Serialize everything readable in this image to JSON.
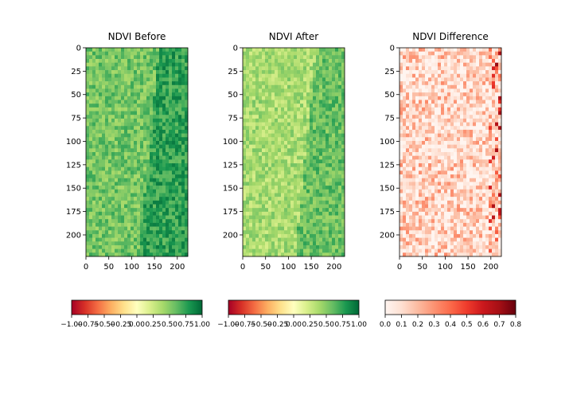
{
  "chart_data": [
    {
      "type": "heatmap",
      "title": "NDVI Before",
      "colormap": "RdYlGn",
      "xlim": [
        0,
        223
      ],
      "ylim": [
        223,
        0
      ],
      "x_ticks": [
        "0",
        "50",
        "100",
        "150",
        "200"
      ],
      "y_ticks": [
        "0",
        "25",
        "50",
        "75",
        "100",
        "125",
        "150",
        "175",
        "200"
      ],
      "value_range": [
        -1.0,
        1.0
      ],
      "typical_value": 0.55,
      "colorbar": {
        "orientation": "horizontal",
        "ticks": [
          "−1.00",
          "−0.75",
          "−0.50",
          "−0.25",
          "0.00",
          "0.25",
          "0.50",
          "0.75",
          "1.00"
        ]
      }
    },
    {
      "type": "heatmap",
      "title": "NDVI After",
      "colormap": "RdYlGn",
      "xlim": [
        0,
        223
      ],
      "ylim": [
        223,
        0
      ],
      "x_ticks": [
        "0",
        "50",
        "100",
        "150",
        "200"
      ],
      "y_ticks": [
        "0",
        "25",
        "50",
        "75",
        "100",
        "125",
        "150",
        "175",
        "200"
      ],
      "value_range": [
        -1.0,
        1.0
      ],
      "typical_value": 0.38,
      "colorbar": {
        "orientation": "horizontal",
        "ticks": [
          "−1.00",
          "−0.75",
          "−0.50",
          "−0.25",
          "0.00",
          "0.25",
          "0.50",
          "0.75",
          "1.00"
        ]
      }
    },
    {
      "type": "heatmap",
      "title": "NDVI Difference",
      "colormap": "Reds",
      "xlim": [
        0,
        223
      ],
      "ylim": [
        223,
        0
      ],
      "x_ticks": [
        "0",
        "50",
        "100",
        "150",
        "200"
      ],
      "y_ticks": [
        "0",
        "25",
        "50",
        "75",
        "100",
        "125",
        "150",
        "175",
        "200"
      ],
      "value_range": [
        0.0,
        0.8
      ],
      "typical_value": 0.15,
      "colorbar": {
        "orientation": "horizontal",
        "ticks": [
          "0.0",
          "0.1",
          "0.2",
          "0.3",
          "0.4",
          "0.5",
          "0.6",
          "0.7",
          "0.8"
        ]
      }
    }
  ],
  "colors": {
    "rdylgn": [
      "#a50026",
      "#d73027",
      "#f46d43",
      "#fdae61",
      "#fee08b",
      "#ffffbf",
      "#d9ef8b",
      "#a6d96a",
      "#66bd63",
      "#1a9850",
      "#006837"
    ],
    "reds": [
      "#fff5f0",
      "#fee0d2",
      "#fcbba1",
      "#fc9272",
      "#fb6a4a",
      "#ef3b2c",
      "#cb181d",
      "#a50f15",
      "#67000d"
    ]
  }
}
